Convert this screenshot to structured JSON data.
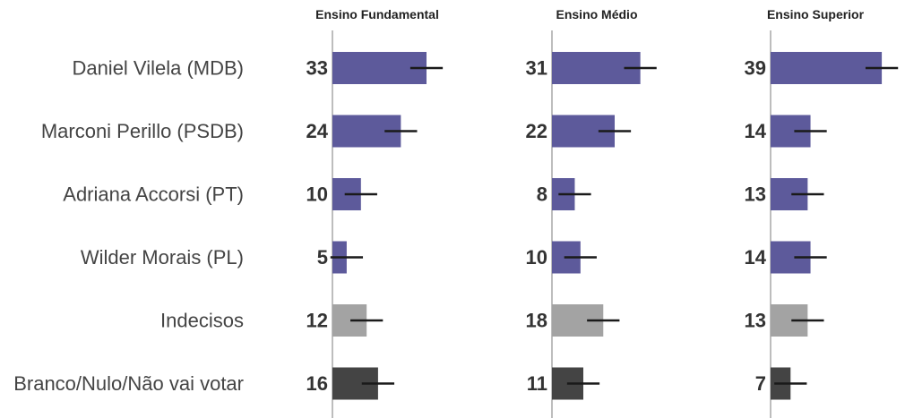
{
  "chart_data": {
    "type": "bar",
    "orientation": "horizontal",
    "categories": [
      "Daniel Vilela (MDB)",
      "Marconi Perillo (PSDB)",
      "Adriana Accorsi (PT)",
      "Wilder Morais (PL)",
      "Indecisos",
      "Branco/Nulo/Não vai votar"
    ],
    "category_colors": [
      "#5d5a9b",
      "#5d5a9b",
      "#5d5a9b",
      "#5d5a9b",
      "#a3a3a3",
      "#444444"
    ],
    "error_margin": 3,
    "error_bar_color": "#1a1a1a",
    "axis_line_color": "#bdbdbd",
    "xlim": [
      0,
      40
    ],
    "panels": [
      {
        "title": "Ensino Fundamental",
        "values": [
          33,
          24,
          10,
          5,
          12,
          16
        ]
      },
      {
        "title": "Ensino Médio",
        "values": [
          31,
          22,
          8,
          10,
          18,
          11
        ]
      },
      {
        "title": "Ensino Superior",
        "values": [
          39,
          14,
          13,
          14,
          13,
          7
        ]
      }
    ]
  }
}
